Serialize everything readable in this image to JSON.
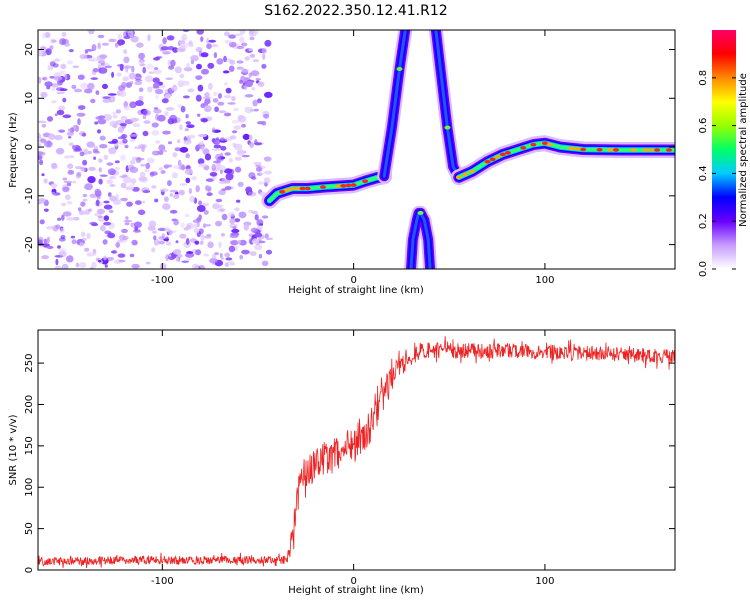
{
  "figure": {
    "title": "S162.2022.350.12.41.R12"
  },
  "chart_data": [
    {
      "type": "heatmap",
      "xlabel": "Height of straight line (km)",
      "ylabel": "Frequency (Hz)",
      "xlim": [
        -165,
        168
      ],
      "ylim": [
        -25,
        24
      ],
      "xticks": [
        -100,
        0,
        100
      ],
      "yticks": [
        -20,
        -10,
        0,
        10,
        20
      ],
      "colorbar": {
        "label": "Normalized spectral amplitude",
        "range": [
          0,
          1
        ],
        "ticks": [
          "0.0",
          "0.2",
          "0.4",
          "0.6",
          "0.8"
        ],
        "colors": [
          "#ffffff",
          "#c89bff",
          "#6600ff",
          "#0000ff",
          "#00ccff",
          "#00ff66",
          "#99ff00",
          "#ffff00",
          "#ff8800",
          "#ff0000",
          "#ff0066"
        ]
      },
      "noise_region_x": [
        -165,
        -44
      ],
      "traces": [
        {
          "name": "",
          "amplitude": 0.95,
          "points": [
            [
              -44,
              -11
            ],
            [
              -40,
              -9.5
            ],
            [
              -32,
              -8.5
            ],
            [
              -24,
              -8.5
            ],
            [
              -16,
              -8.2
            ],
            [
              -8,
              -8
            ],
            [
              0,
              -7.8
            ],
            [
              6,
              -7
            ],
            [
              12,
              -6.3
            ],
            [
              16,
              -6
            ]
          ]
        },
        {
          "name": "",
          "amplitude": 0.6,
          "points": [
            [
              16,
              -6
            ],
            [
              20,
              4
            ],
            [
              24,
              16
            ],
            [
              27,
              24
            ]
          ]
        },
        {
          "name": "",
          "amplitude": 0.6,
          "points": [
            [
              43,
              24
            ],
            [
              46,
              14
            ],
            [
              49,
              4
            ],
            [
              52,
              -4
            ],
            [
              55,
              -6.2
            ]
          ]
        },
        {
          "name": "",
          "amplitude": 0.95,
          "points": [
            [
              55,
              -6.2
            ],
            [
              62,
              -5
            ],
            [
              70,
              -3
            ],
            [
              78,
              -1.5
            ],
            [
              86,
              -0.5
            ],
            [
              94,
              0.5
            ],
            [
              100,
              0.8
            ],
            [
              108,
              0
            ],
            [
              120,
              -0.5
            ],
            [
              140,
              -0.6
            ],
            [
              168,
              -0.6
            ]
          ]
        },
        {
          "name": "",
          "amplitude": 0.5,
          "points": [
            [
              30,
              -25
            ],
            [
              31,
              -19
            ],
            [
              33,
              -15
            ],
            [
              34,
              -13.5
            ],
            [
              35,
              -13.5
            ],
            [
              37,
              -15
            ],
            [
              39,
              -19
            ],
            [
              40,
              -25
            ]
          ]
        }
      ]
    },
    {
      "type": "line",
      "xlabel": "Height of straight line (km)",
      "ylabel": "SNR (10 * v/v)",
      "xlim": [
        -165,
        168
      ],
      "ylim": [
        0,
        290
      ],
      "xticks": [
        -100,
        0,
        100
      ],
      "yticks": [
        0,
        50,
        100,
        150,
        200,
        250
      ],
      "color": "#ee2222",
      "series": [
        {
          "name": "",
          "x": [
            -165,
            -120,
            -80,
            -50,
            -35,
            -32,
            -28,
            -20,
            -10,
            0,
            10,
            18,
            25,
            35,
            50,
            80,
            120,
            168
          ],
          "values": [
            10,
            12,
            12,
            12,
            12,
            40,
            110,
            130,
            140,
            155,
            175,
            225,
            250,
            265,
            265,
            265,
            262,
            258
          ],
          "noise_amplitude": [
            10,
            10,
            10,
            10,
            10,
            40,
            40,
            40,
            40,
            45,
            45,
            30,
            25,
            20,
            20,
            18,
            18,
            18
          ]
        }
      ]
    }
  ]
}
